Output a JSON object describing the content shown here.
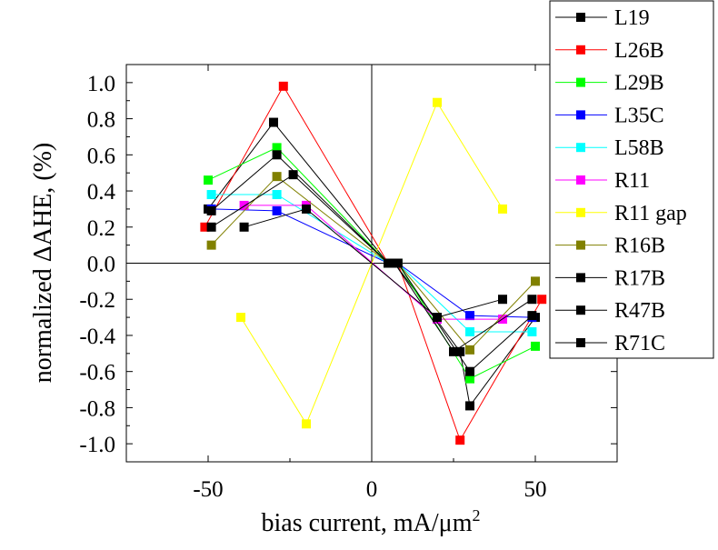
{
  "chart_data": {
    "type": "line",
    "title": "",
    "xlabel": "bias current, mA/μm",
    "xlabel_superscript": "2",
    "ylabel": "normalized ΔAHE, (%)",
    "xlim": [
      -75,
      75
    ],
    "ylim": [
      -1.1,
      1.1
    ],
    "x_ticks": [
      -50,
      0,
      50
    ],
    "x_tick_labels": [
      "-50",
      "0",
      "50"
    ],
    "y_ticks": [
      1.0,
      0.8,
      0.6,
      0.4,
      0.2,
      0.0,
      -0.2,
      -0.4,
      -0.6,
      -0.8,
      -1.0
    ],
    "y_tick_labels": [
      "1.0",
      "0.8",
      "0.6",
      "0.4",
      "0.2",
      "0.0",
      "-0.2",
      "-0.4",
      "-0.6",
      "-0.8",
      "-1.0"
    ],
    "grid": false,
    "zero_lines": true,
    "legend_position": "right",
    "series": [
      {
        "name": "L19",
        "color": "#000000",
        "x": [
          -50,
          -30,
          5,
          7,
          27,
          30,
          50
        ],
        "y": [
          0.3,
          0.78,
          0.0,
          0.0,
          -0.49,
          -0.79,
          -0.3
        ]
      },
      {
        "name": "L26B",
        "color": "#ff0000",
        "x": [
          -51,
          -27,
          5,
          8,
          27,
          52
        ],
        "y": [
          0.2,
          0.98,
          0.0,
          0.0,
          -0.98,
          -0.2
        ]
      },
      {
        "name": "L29B",
        "color": "#00ff00",
        "x": [
          -50,
          -29,
          5,
          8,
          30,
          50
        ],
        "y": [
          0.46,
          0.64,
          0.0,
          0.0,
          -0.64,
          -0.46
        ]
      },
      {
        "name": "L35C",
        "color": "#0000ff",
        "x": [
          -49,
          -29,
          5,
          8,
          30,
          49
        ],
        "y": [
          0.3,
          0.29,
          0.0,
          0.0,
          -0.29,
          -0.3
        ]
      },
      {
        "name": "L58B",
        "color": "#00ffff",
        "x": [
          -49,
          -29,
          5,
          8,
          30,
          49
        ],
        "y": [
          0.38,
          0.38,
          0.0,
          0.0,
          -0.38,
          -0.38
        ]
      },
      {
        "name": "R11",
        "color": "#ff00ff",
        "x": [
          -39,
          -20,
          20,
          40
        ],
        "y": [
          0.32,
          0.32,
          -0.31,
          -0.31
        ]
      },
      {
        "name": "R11 gap",
        "color": "#ffff00",
        "x": [
          -40,
          -20,
          20,
          40
        ],
        "y": [
          -0.3,
          -0.89,
          0.89,
          0.3
        ]
      },
      {
        "name": "R16B",
        "color": "#808000",
        "x": [
          -49,
          -29,
          5,
          8,
          30,
          50
        ],
        "y": [
          0.1,
          0.48,
          0.0,
          0.0,
          -0.48,
          -0.1
        ]
      },
      {
        "name": "R17B",
        "color": "#000000",
        "x": [
          -39,
          -20,
          20,
          40
        ],
        "y": [
          0.2,
          0.3,
          -0.3,
          -0.2
        ]
      },
      {
        "name": "R47B",
        "color": "#000000",
        "x": [
          -49,
          -24,
          5,
          7,
          25,
          49
        ],
        "y": [
          0.2,
          0.49,
          0.0,
          0.0,
          -0.49,
          -0.2
        ]
      },
      {
        "name": "R71C",
        "color": "#000000",
        "x": [
          -49,
          -29,
          5,
          8,
          30,
          49
        ],
        "y": [
          0.29,
          0.6,
          0.0,
          0.0,
          -0.6,
          -0.29
        ]
      }
    ]
  }
}
